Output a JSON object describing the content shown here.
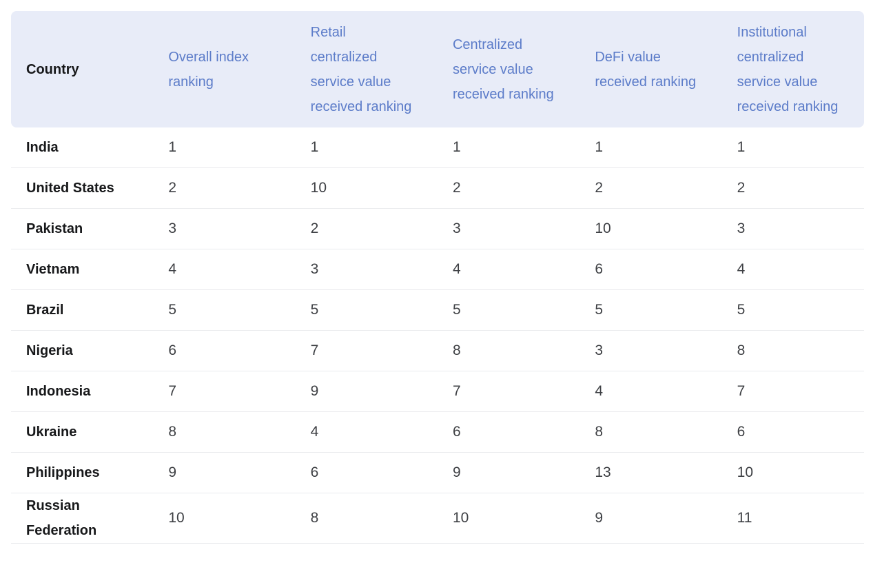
{
  "colors": {
    "header_background": "#e8ecf8",
    "header_link_blue": "#5c7cc9",
    "country_text": "#17181a",
    "rank_text": "#3e4044",
    "row_divider": "#eaebee",
    "page_background": "#ffffff"
  },
  "chart_data": {
    "type": "table",
    "columns": [
      "Country",
      "Overall index ranking",
      "Retail centralized service value received ranking",
      "Centralized service value received ranking",
      "DeFi value received ranking",
      "Institutional centralized service value received ranking"
    ],
    "rows": [
      {
        "country": "India",
        "values": [
          1,
          1,
          1,
          1,
          1
        ]
      },
      {
        "country": "United States",
        "values": [
          2,
          10,
          2,
          2,
          2
        ]
      },
      {
        "country": "Pakistan",
        "values": [
          3,
          2,
          3,
          10,
          3
        ]
      },
      {
        "country": "Vietnam",
        "values": [
          4,
          3,
          4,
          6,
          4
        ]
      },
      {
        "country": "Brazil",
        "values": [
          5,
          5,
          5,
          5,
          5
        ]
      },
      {
        "country": "Nigeria",
        "values": [
          6,
          7,
          8,
          3,
          8
        ]
      },
      {
        "country": "Indonesia",
        "values": [
          7,
          9,
          7,
          4,
          7
        ]
      },
      {
        "country": "Ukraine",
        "values": [
          8,
          4,
          6,
          8,
          6
        ]
      },
      {
        "country": "Philippines",
        "values": [
          9,
          6,
          9,
          13,
          10
        ]
      },
      {
        "country": "Russian Federation",
        "values": [
          10,
          8,
          10,
          9,
          11
        ]
      }
    ]
  }
}
